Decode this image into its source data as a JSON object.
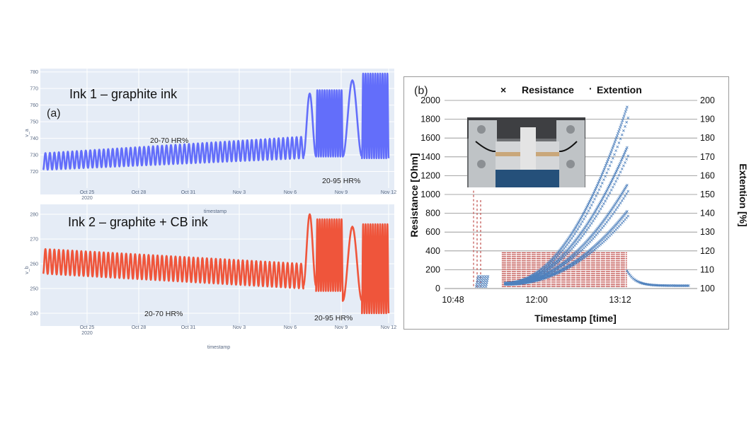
{
  "chart_data": [
    {
      "type": "line",
      "panel_label": "(a)",
      "title": "Ink 1 – graphite ink",
      "xlabel": "timestamp",
      "ylabel": "v_a",
      "x_tick_labels": [
        "Oct 25",
        "Oct 28",
        "Oct 31",
        "Nov 3",
        "Nov 6",
        "Nov 9",
        "Nov 12"
      ],
      "x_tick_sub": "2020",
      "y_ticks": [
        720,
        730,
        740,
        750,
        760,
        770,
        780
      ],
      "ylim": [
        710,
        782
      ],
      "annotations": [
        "20-70 HR%",
        "20-95 HR%"
      ],
      "color": "#636efa",
      "series": [
        {
          "phases": [
            {
              "x_start_day": 0,
              "x_end_day": 24.4,
              "cycles": 58,
              "min_start": 721,
              "min_end": 728,
              "max_start": 731,
              "max_end": 741
            },
            {
              "x_start_day": 24.4,
              "x_end_day": 25.6,
              "cycles": 1,
              "min": 729,
              "max": 767
            },
            {
              "x_start_day": 25.6,
              "x_end_day": 28.1,
              "cycles": 11,
              "min": 729,
              "max": 769
            },
            {
              "x_start_day": 28.1,
              "x_end_day": 29.9,
              "cycles": 1,
              "min": 729,
              "max": 775
            },
            {
              "x_start_day": 29.9,
              "x_end_day": 32.4,
              "cycles": 11,
              "min": 728,
              "max": 779
            }
          ]
        }
      ]
    },
    {
      "type": "line",
      "title": "Ink 2 – graphite + CB ink",
      "xlabel": "timestamp",
      "ylabel": "v_b",
      "x_tick_labels": [
        "Oct 25",
        "Oct 28",
        "Oct 31",
        "Nov 3",
        "Nov 6",
        "Nov 9",
        "Nov 12"
      ],
      "x_tick_sub": "2020",
      "y_ticks": [
        240,
        250,
        260,
        270,
        280
      ],
      "ylim": [
        236,
        284
      ],
      "annotations": [
        "20-70 HR%",
        "20-95 HR%"
      ],
      "color": "#ef553b",
      "series": [
        {
          "phases": [
            {
              "x_start_day": 0,
              "x_end_day": 24.4,
              "cycles": 58,
              "min_start": 256,
              "min_end": 250,
              "max_start": 266,
              "max_end": 260
            },
            {
              "x_start_day": 24.4,
              "x_end_day": 25.6,
              "cycles": 1,
              "min": 251,
              "max": 280
            },
            {
              "x_start_day": 25.6,
              "x_end_day": 28.1,
              "cycles": 11,
              "min": 249,
              "max": 278
            },
            {
              "x_start_day": 28.1,
              "x_end_day": 29.9,
              "cycles": 1,
              "min": 245,
              "max": 275
            },
            {
              "x_start_day": 29.9,
              "x_end_day": 32.4,
              "cycles": 11,
              "min": 240,
              "max": 276
            }
          ]
        }
      ]
    },
    {
      "type": "scatter",
      "panel_label": "(b)",
      "xlabel": "Timestamp [time]",
      "ylabel": "Resistance [Ohm]",
      "y2label": "Extention [%]",
      "x_tick_labels": [
        "10:48",
        "12:00",
        "13:12"
      ],
      "y_ticks": [
        0,
        200,
        400,
        600,
        800,
        1000,
        1200,
        1400,
        1600,
        1800,
        2000
      ],
      "y2_ticks": [
        100,
        110,
        120,
        130,
        140,
        150,
        160,
        170,
        180,
        190,
        200
      ],
      "ylim": [
        0,
        2000
      ],
      "y2lim": [
        100,
        200
      ],
      "grid": true,
      "legend": [
        "Resistance",
        "Extention"
      ],
      "legend_position": "top",
      "colors": {
        "resistance": "#4f81bd",
        "extention": "#c0504d"
      },
      "resistance_branches": [
        {
          "from_minute": 45,
          "to_minute": 150,
          "r_start": 60,
          "r_end": 1930
        },
        {
          "from_minute": 45,
          "to_minute": 150,
          "r_start": 55,
          "r_end": 1500
        },
        {
          "from_minute": 45,
          "to_minute": 150,
          "r_start": 50,
          "r_end": 1100
        },
        {
          "from_minute": 45,
          "to_minute": 150,
          "r_start": 45,
          "r_end": 820
        }
      ],
      "extention_levels": [
        101,
        102,
        103,
        104,
        105,
        106,
        107,
        108,
        109,
        110,
        111,
        112,
        113,
        114,
        115,
        116,
        117,
        118,
        119
      ]
    }
  ]
}
